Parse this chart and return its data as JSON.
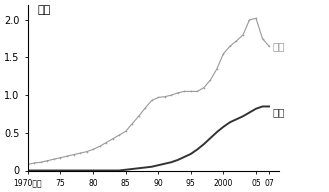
{
  "title": "",
  "ylabel": "万人",
  "ylim": [
    0,
    2.2
  ],
  "yticks": [
    0,
    0.5,
    1.0,
    1.5,
    2.0
  ],
  "xlim": [
    1970,
    2008.5
  ],
  "xticks": [
    1970,
    1975,
    1980,
    1985,
    1990,
    1995,
    2000,
    2005,
    2007
  ],
  "xticklabels": [
    "1970年度",
    "75",
    "80",
    "85",
    "90",
    "95",
    "2000",
    "05",
    "07"
  ],
  "usa_x": [
    1970,
    1971,
    1972,
    1973,
    1974,
    1975,
    1976,
    1977,
    1978,
    1979,
    1980,
    1981,
    1982,
    1983,
    1984,
    1985,
    1986,
    1987,
    1988,
    1989,
    1990,
    1991,
    1992,
    1993,
    1994,
    1995,
    1996,
    1997,
    1998,
    1999,
    2000,
    2001,
    2002,
    2003,
    2004,
    2005,
    2006,
    2007
  ],
  "usa_y": [
    0.08,
    0.1,
    0.11,
    0.13,
    0.15,
    0.17,
    0.19,
    0.21,
    0.23,
    0.25,
    0.28,
    0.32,
    0.37,
    0.42,
    0.47,
    0.52,
    0.62,
    0.72,
    0.83,
    0.93,
    0.97,
    0.98,
    1.0,
    1.03,
    1.05,
    1.05,
    1.05,
    1.1,
    1.2,
    1.35,
    1.55,
    1.65,
    1.72,
    1.8,
    2.0,
    2.02,
    1.75,
    1.65
  ],
  "japan_x": [
    1970,
    1971,
    1972,
    1973,
    1974,
    1975,
    1976,
    1977,
    1978,
    1979,
    1980,
    1981,
    1982,
    1983,
    1984,
    1985,
    1986,
    1987,
    1988,
    1989,
    1990,
    1991,
    1992,
    1993,
    1994,
    1995,
    1996,
    1997,
    1998,
    1999,
    2000,
    2001,
    2002,
    2003,
    2004,
    2005,
    2006,
    2007
  ],
  "japan_y": [
    0.0,
    0.0,
    0.0,
    0.0,
    0.0,
    0.0,
    0.0,
    0.0,
    0.0,
    0.0,
    0.0,
    0.0,
    0.0,
    0.0,
    0.0,
    0.01,
    0.02,
    0.03,
    0.04,
    0.05,
    0.07,
    0.09,
    0.11,
    0.14,
    0.18,
    0.22,
    0.28,
    0.35,
    0.43,
    0.51,
    0.58,
    0.64,
    0.68,
    0.72,
    0.77,
    0.82,
    0.85,
    0.85
  ],
  "usa_color": "#999999",
  "japan_color": "#333333",
  "label_usa": "米国",
  "label_japan": "日本",
  "background_color": "#ffffff",
  "fig_bg": "#ffffff"
}
